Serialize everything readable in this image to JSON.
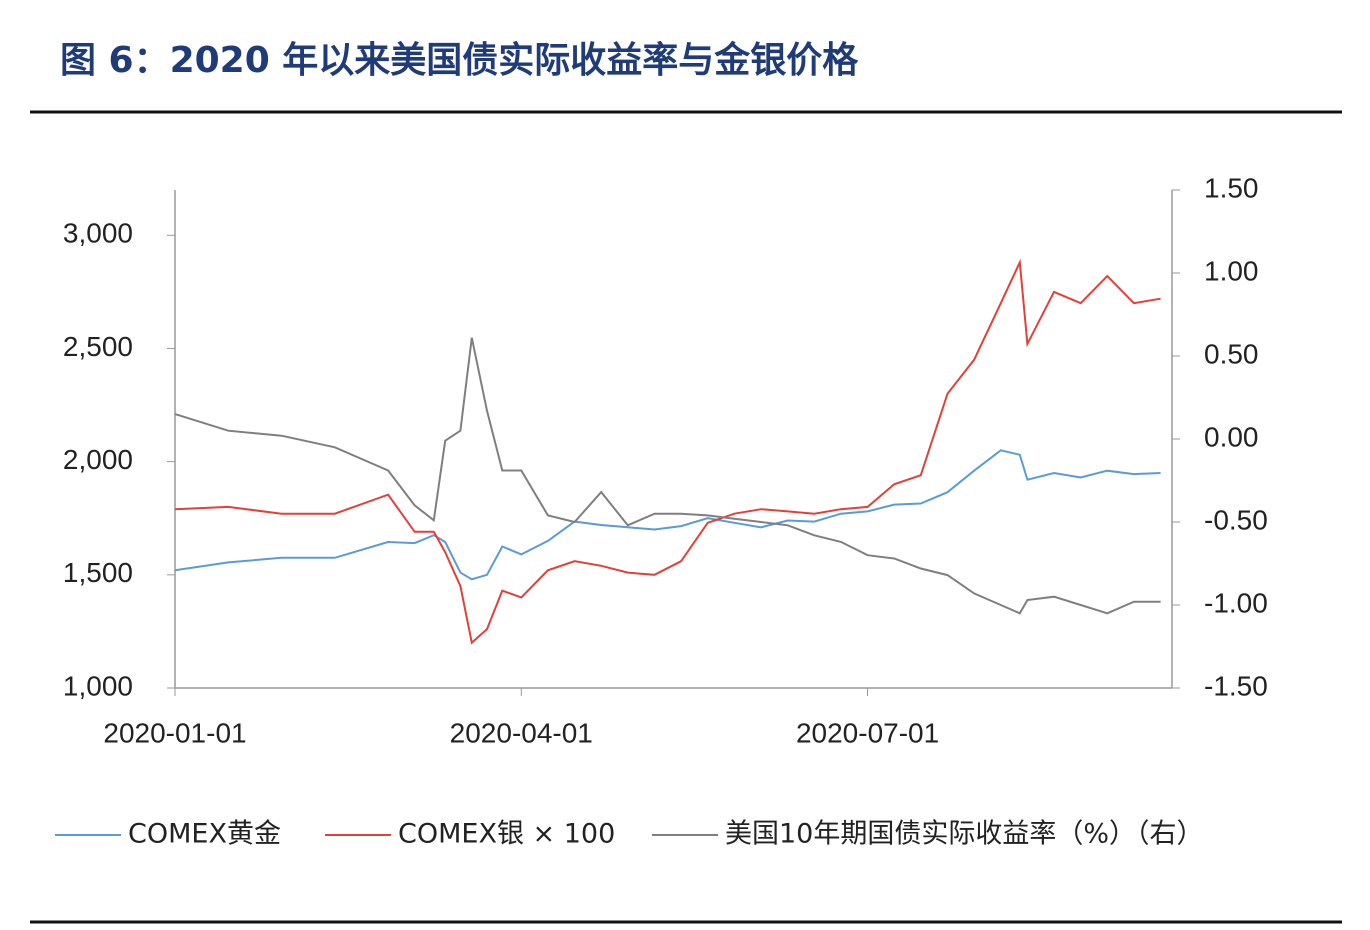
{
  "chart_data": {
    "type": "line",
    "title": "图 6：2020 年以来美国债实际收益率与金银价格",
    "x": [
      "2020-01-01",
      "2020-01-15",
      "2020-01-29",
      "2020-02-12",
      "2020-02-26",
      "2020-03-04",
      "2020-03-09",
      "2020-03-12",
      "2020-03-16",
      "2020-03-19",
      "2020-03-23",
      "2020-03-27",
      "2020-04-01",
      "2020-04-08",
      "2020-04-15",
      "2020-04-22",
      "2020-04-29",
      "2020-05-06",
      "2020-05-13",
      "2020-05-20",
      "2020-05-27",
      "2020-06-03",
      "2020-06-10",
      "2020-06-17",
      "2020-06-24",
      "2020-07-01",
      "2020-07-08",
      "2020-07-15",
      "2020-07-22",
      "2020-07-29",
      "2020-08-05",
      "2020-08-10",
      "2020-08-12",
      "2020-08-19",
      "2020-08-26",
      "2020-09-02",
      "2020-09-09",
      "2020-09-16"
    ],
    "xlim": [
      "2020-01-01",
      "2020-09-19"
    ],
    "xticks": [
      "2020-01-01",
      "2020-04-01",
      "2020-07-01"
    ],
    "ylim": [
      1000,
      3200
    ],
    "yticks": [
      {
        "value": 1000,
        "label": "1,000"
      },
      {
        "value": 1500,
        "label": "1,500"
      },
      {
        "value": 2000,
        "label": "2,000"
      },
      {
        "value": 2500,
        "label": "2,500"
      },
      {
        "value": 3000,
        "label": "3,000"
      }
    ],
    "y2lim": [
      -1.5,
      1.5
    ],
    "y2ticks": [
      {
        "value": -1.5,
        "label": "-1.50"
      },
      {
        "value": -1,
        "label": "-1.00"
      },
      {
        "value": -0.5,
        "label": "-0.50"
      },
      {
        "value": 0,
        "label": "0.00"
      },
      {
        "value": 0.5,
        "label": "0.50"
      },
      {
        "value": 1,
        "label": "1.00"
      },
      {
        "value": 1.5,
        "label": "1.50"
      }
    ],
    "series": [
      {
        "name": "COMEX黄金",
        "color": "#5b9bd5",
        "values": [
          1520,
          1555,
          1575,
          1575,
          1645,
          1640,
          1675,
          1645,
          1510,
          1480,
          1500,
          1625,
          1590,
          1650,
          1735,
          1720,
          1710,
          1700,
          1715,
          1750,
          1730,
          1710,
          1740,
          1735,
          1770,
          1780,
          1810,
          1815,
          1865,
          1960,
          2050,
          2030,
          1920,
          1950,
          1930,
          1960,
          1945,
          1950
        ]
      },
      {
        "name": "COMEX银 × 100",
        "color": "#e0413a",
        "values": [
          1790,
          1800,
          1770,
          1770,
          1854,
          1690,
          1690,
          1600,
          1450,
          1200,
          1260,
          1430,
          1400,
          1520,
          1560,
          1540,
          1510,
          1500,
          1560,
          1730,
          1770,
          1790,
          1780,
          1770,
          1790,
          1800,
          1900,
          1940,
          2300,
          2450,
          2700,
          2880,
          2520,
          2750,
          2700,
          2820,
          2700,
          2720
        ]
      },
      {
        "name": "美国10年期国债实际收益率（%）（右）",
        "color": "#7f7f7f",
        "axis": "y2",
        "values": [
          0.15,
          0.05,
          0.02,
          -0.05,
          -0.19,
          -0.4,
          -0.49,
          -0.01,
          0.05,
          0.61,
          0.17,
          -0.19,
          -0.19,
          -0.46,
          -0.5,
          -0.32,
          -0.52,
          -0.45,
          -0.45,
          -0.46,
          -0.48,
          -0.5,
          -0.52,
          -0.58,
          -0.62,
          -0.7,
          -0.72,
          -0.78,
          -0.82,
          -0.93,
          -1.0,
          -1.05,
          -0.97,
          -0.95,
          -1.0,
          -1.05,
          -0.98,
          -0.98
        ]
      }
    ]
  }
}
